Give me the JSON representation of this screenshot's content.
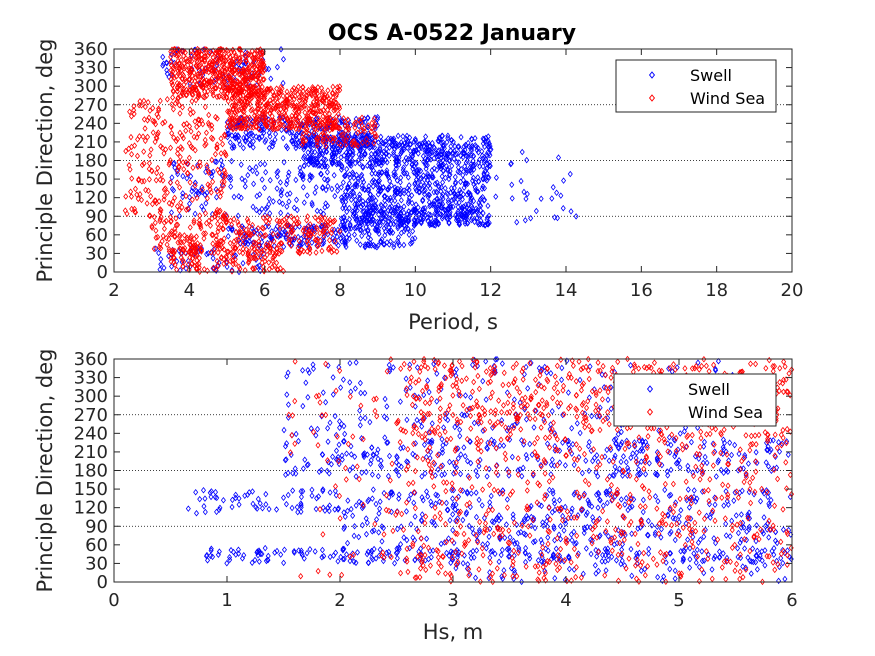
{
  "figure_title": "OCS A-0522 January",
  "chart_data": [
    {
      "type": "scatter",
      "title": "OCS A-0522 January",
      "xlabel": "Period, s",
      "ylabel": "Principle Direction, deg",
      "xlim": [
        2,
        20
      ],
      "ylim": [
        0,
        360
      ],
      "xticks": [
        2,
        4,
        6,
        8,
        10,
        12,
        14,
        16,
        18,
        20
      ],
      "yticks": [
        0,
        30,
        60,
        90,
        120,
        150,
        180,
        210,
        240,
        270,
        300,
        330,
        360
      ],
      "reference_lines_y": [
        90,
        180,
        270
      ],
      "grid": false,
      "legend_position": "top-right",
      "marker": "diamond",
      "series": [
        {
          "name": "Swell",
          "color": "#0000ff",
          "clusters": [
            {
              "x": [
                3.2,
                6.5
              ],
              "y": [
                300,
                360
              ],
              "n": 70
            },
            {
              "x": [
                5,
                9
              ],
              "y": [
                200,
                250
              ],
              "n": 260
            },
            {
              "x": [
                7,
                12
              ],
              "y": [
                170,
                220
              ],
              "n": 500
            },
            {
              "x": [
                8,
                12
              ],
              "y": [
                110,
                170
              ],
              "n": 320
            },
            {
              "x": [
                8,
                12
              ],
              "y": [
                75,
                110
              ],
              "n": 330
            },
            {
              "x": [
                5,
                10
              ],
              "y": [
                40,
                75
              ],
              "n": 220
            },
            {
              "x": [
                3.5,
                8
              ],
              "y": [
                90,
                180
              ],
              "n": 160
            },
            {
              "x": [
                3,
                6
              ],
              "y": [
                0,
                40
              ],
              "n": 50
            },
            {
              "x": [
                12,
                14.5
              ],
              "y": [
                80,
                200
              ],
              "n": 30
            }
          ]
        },
        {
          "name": "Wind Sea",
          "color": "#ff0000",
          "clusters": [
            {
              "x": [
                3.5,
                6
              ],
              "y": [
                280,
                360
              ],
              "n": 500
            },
            {
              "x": [
                5,
                8
              ],
              "y": [
                230,
                300
              ],
              "n": 450
            },
            {
              "x": [
                7,
                9
              ],
              "y": [
                200,
                250
              ],
              "n": 100
            },
            {
              "x": [
                2.3,
                5
              ],
              "y": [
                90,
                280
              ],
              "n": 250
            },
            {
              "x": [
                3,
                8
              ],
              "y": [
                30,
                90
              ],
              "n": 300
            },
            {
              "x": [
                3.5,
                6.5
              ],
              "y": [
                0,
                40
              ],
              "n": 120
            }
          ]
        }
      ]
    },
    {
      "type": "scatter",
      "xlabel": "Hs, m",
      "ylabel": "Principle Direction, deg",
      "xlim": [
        0,
        6
      ],
      "ylim": [
        0,
        360
      ],
      "xticks": [
        0,
        1,
        2,
        3,
        4,
        5,
        6
      ],
      "yticks": [
        0,
        30,
        60,
        90,
        120,
        150,
        180,
        210,
        240,
        270,
        300,
        330,
        360
      ],
      "reference_lines_y": [
        90,
        180,
        270
      ],
      "grid": false,
      "legend_position": "top-right",
      "marker": "diamond",
      "series": [
        {
          "name": "Swell",
          "color": "#0000ff",
          "clusters": [
            {
              "x": [
                0.8,
                6
              ],
              "y": [
                30,
                55
              ],
              "n": 260
            },
            {
              "x": [
                0.6,
                6
              ],
              "y": [
                110,
                150
              ],
              "n": 240
            },
            {
              "x": [
                2,
                6
              ],
              "y": [
                60,
                110
              ],
              "n": 220
            },
            {
              "x": [
                1.5,
                6
              ],
              "y": [
                170,
                230
              ],
              "n": 330
            },
            {
              "x": [
                1.5,
                5.5
              ],
              "y": [
                230,
                360
              ],
              "n": 240
            },
            {
              "x": [
                3,
                6
              ],
              "y": [
                0,
                30
              ],
              "n": 50
            }
          ]
        },
        {
          "name": "Wind Sea",
          "color": "#ff0000",
          "clusters": [
            {
              "x": [
                2.5,
                6
              ],
              "y": [
                230,
                360
              ],
              "n": 550
            },
            {
              "x": [
                2.5,
                6
              ],
              "y": [
                120,
                230
              ],
              "n": 220
            },
            {
              "x": [
                2.5,
                6
              ],
              "y": [
                0,
                120
              ],
              "n": 300
            },
            {
              "x": [
                1.5,
                2.5
              ],
              "y": [
                0,
                360
              ],
              "n": 60
            }
          ]
        }
      ]
    }
  ]
}
